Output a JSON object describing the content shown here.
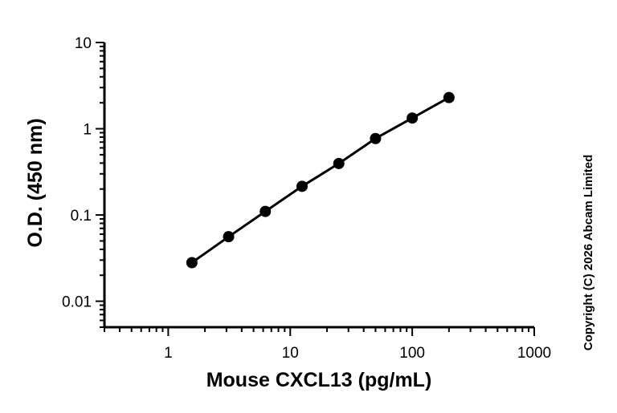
{
  "chart_data": {
    "type": "scatter",
    "xlabel": "Mouse CXCL13 (pg/mL)",
    "ylabel": "O.D. (450 nm)",
    "x_scale": "log",
    "y_scale": "log",
    "xlim": [
      0.3,
      1000
    ],
    "ylim": [
      0.005,
      10
    ],
    "x_ticks": [
      {
        "value": 1,
        "label": "1"
      },
      {
        "value": 10,
        "label": "10"
      },
      {
        "value": 100,
        "label": "100"
      },
      {
        "value": 1000,
        "label": "1000"
      }
    ],
    "y_ticks": [
      {
        "value": 0.01,
        "label": "0.01"
      },
      {
        "value": 0.1,
        "label": "0.1"
      },
      {
        "value": 1,
        "label": "1"
      },
      {
        "value": 10,
        "label": "10"
      }
    ],
    "series": [
      {
        "x": [
          1.5625,
          3.125,
          6.25,
          12.5,
          25,
          50,
          100,
          200
        ],
        "y": [
          0.028,
          0.056,
          0.11,
          0.215,
          0.395,
          0.77,
          1.33,
          2.3
        ],
        "fit_line": true
      }
    ],
    "grid": false,
    "legend": "none"
  },
  "copyright": "Copyright (C) 2026 Abcam Limited",
  "colors": {
    "marks": "#000000",
    "background": "#ffffff"
  }
}
